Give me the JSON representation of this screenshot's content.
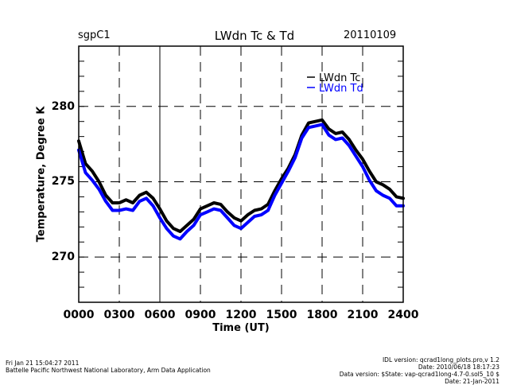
{
  "header": {
    "site": "sgpC1",
    "title": "LWdn Tc & Td",
    "date": "20110109"
  },
  "footer": {
    "left": [
      "Fri Jan 21 15:04:27 2011",
      "Battelle Pacific Northwest National Laboratory, Arm Data Application"
    ],
    "right": [
      "IDL version: qcrad1long_plots.pro,v 1.2",
      "Date: 2010/06/18 18:17:23",
      "Data version: $State: vap-qcrad1long-4.7-0.sol5_10 $",
      "Date: 21-Jan-2011"
    ]
  },
  "chart_data": {
    "type": "line",
    "title": "LWdn Tc & Td",
    "xlabel": "Time (UT)",
    "ylabel": "Temperature, Degree K",
    "xlim": [
      0,
      24
    ],
    "ylim": [
      267,
      284
    ],
    "x_ticks": [
      0,
      3,
      6,
      9,
      12,
      15,
      18,
      21,
      24
    ],
    "x_tick_labels": [
      "0000",
      "0300",
      "0600",
      "0900",
      "1200",
      "1500",
      "1800",
      "2100",
      "2400"
    ],
    "y_ticks": [
      270,
      275,
      280
    ],
    "y_tick_labels": [
      "270",
      "275",
      "280"
    ],
    "y_minor_step": 1,
    "grid": "dashed",
    "legend": "top-right",
    "x": [
      0,
      0.5,
      1,
      1.5,
      2,
      2.5,
      3,
      3.5,
      4,
      4.5,
      5,
      5.5,
      6,
      6.5,
      7,
      7.5,
      8,
      8.5,
      9,
      9.5,
      10,
      10.5,
      11,
      11.5,
      12,
      12.5,
      13,
      13.5,
      14,
      14.5,
      15,
      15.5,
      16,
      16.5,
      17,
      17.5,
      18,
      18.5,
      19,
      19.5,
      20,
      20.5,
      21,
      21.5,
      22,
      22.5,
      23,
      23.5,
      24
    ],
    "series": [
      {
        "name": "LWdn Tc",
        "color": "#000000",
        "values": [
          277.7,
          276.2,
          275.7,
          275.0,
          274.1,
          273.6,
          273.6,
          273.8,
          273.6,
          274.1,
          274.3,
          273.9,
          273.2,
          272.4,
          271.9,
          271.7,
          272.1,
          272.5,
          273.2,
          273.4,
          273.6,
          273.5,
          273.0,
          272.6,
          272.4,
          272.8,
          273.1,
          273.2,
          273.5,
          274.4,
          275.2,
          275.9,
          276.8,
          278.1,
          278.9,
          279.0,
          279.1,
          278.5,
          278.2,
          278.3,
          277.8,
          277.1,
          276.5,
          275.7,
          275.0,
          274.8,
          274.5,
          274.0,
          273.9
        ]
      },
      {
        "name": "LWdn Td",
        "color": "#0000ff",
        "values": [
          277.1,
          275.6,
          275.1,
          274.5,
          273.7,
          273.1,
          273.1,
          273.2,
          273.1,
          273.7,
          273.9,
          273.4,
          272.6,
          271.9,
          271.4,
          271.2,
          271.7,
          272.1,
          272.8,
          273.0,
          273.2,
          273.1,
          272.6,
          272.1,
          271.9,
          272.3,
          272.7,
          272.8,
          273.1,
          274.1,
          274.9,
          275.7,
          276.6,
          277.9,
          278.6,
          278.7,
          278.8,
          278.1,
          277.8,
          277.9,
          277.4,
          276.7,
          276.0,
          275.1,
          274.4,
          274.1,
          273.9,
          273.4,
          273.4
        ]
      }
    ]
  }
}
